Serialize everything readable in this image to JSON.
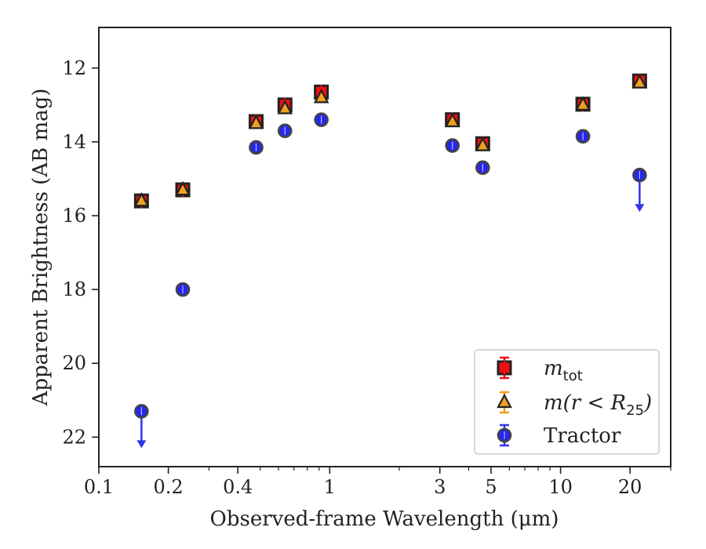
{
  "chart_data": {
    "type": "scatter",
    "xlabel": "Observed-frame Wavelength (μm)",
    "ylabel": "Apparent Brightness (AB mag)",
    "xscale": "log",
    "xlim": [
      0.1,
      30
    ],
    "ylim": [
      22.8,
      10.9
    ],
    "y_inverted": true,
    "x_ticks": [
      {
        "value": 0.1,
        "label": "0.1"
      },
      {
        "value": 0.2,
        "label": "0.2"
      },
      {
        "value": 0.4,
        "label": "0.4"
      },
      {
        "value": 1,
        "label": "1"
      },
      {
        "value": 3,
        "label": "3"
      },
      {
        "value": 5,
        "label": "5"
      },
      {
        "value": 10,
        "label": "10"
      },
      {
        "value": 20,
        "label": "20"
      }
    ],
    "y_ticks": [
      {
        "value": 12,
        "label": "12"
      },
      {
        "value": 14,
        "label": "14"
      },
      {
        "value": 16,
        "label": "16"
      },
      {
        "value": 18,
        "label": "18"
      },
      {
        "value": 20,
        "label": "20"
      },
      {
        "value": 22,
        "label": "22"
      }
    ],
    "grid": false,
    "legend_position": "lower-right",
    "series": [
      {
        "name": "m_tot",
        "legend_label": "m",
        "legend_sub": "tot",
        "marker": "square",
        "color": "#ee1111",
        "edge_color": "#222222",
        "points": [
          {
            "x": 0.153,
            "y": 15.6
          },
          {
            "x": 0.231,
            "y": 15.3
          },
          {
            "x": 0.48,
            "y": 13.45
          },
          {
            "x": 0.64,
            "y": 13.0
          },
          {
            "x": 0.92,
            "y": 12.65
          },
          {
            "x": 3.4,
            "y": 13.4
          },
          {
            "x": 4.6,
            "y": 14.05
          },
          {
            "x": 12.5,
            "y": 12.98
          },
          {
            "x": 22.0,
            "y": 12.35
          }
        ]
      },
      {
        "name": "m(r < R_25)",
        "legend_label": "m(r < R",
        "legend_sub": "25",
        "legend_tail": ")",
        "marker": "triangle",
        "color": "#f0a020",
        "edge_color": "#222222",
        "points": [
          {
            "x": 0.153,
            "y": 15.6
          },
          {
            "x": 0.231,
            "y": 15.3
          },
          {
            "x": 0.48,
            "y": 13.5
          },
          {
            "x": 0.64,
            "y": 13.1
          },
          {
            "x": 0.92,
            "y": 12.8
          },
          {
            "x": 3.4,
            "y": 13.45
          },
          {
            "x": 4.6,
            "y": 14.1
          },
          {
            "x": 12.5,
            "y": 13.0
          },
          {
            "x": 22.0,
            "y": 12.4
          }
        ]
      },
      {
        "name": "Tractor",
        "legend_label": "Tractor",
        "marker": "circle",
        "color": "#1a1aee",
        "edge_color": "#444444",
        "points": [
          {
            "x": 0.153,
            "y": 21.3,
            "upper_limit": true
          },
          {
            "x": 0.231,
            "y": 18.0
          },
          {
            "x": 0.48,
            "y": 14.15
          },
          {
            "x": 0.64,
            "y": 13.7
          },
          {
            "x": 0.92,
            "y": 13.4
          },
          {
            "x": 3.4,
            "y": 14.1
          },
          {
            "x": 4.6,
            "y": 14.7
          },
          {
            "x": 12.5,
            "y": 13.85
          },
          {
            "x": 22.0,
            "y": 14.9,
            "upper_limit": true
          }
        ]
      }
    ]
  }
}
